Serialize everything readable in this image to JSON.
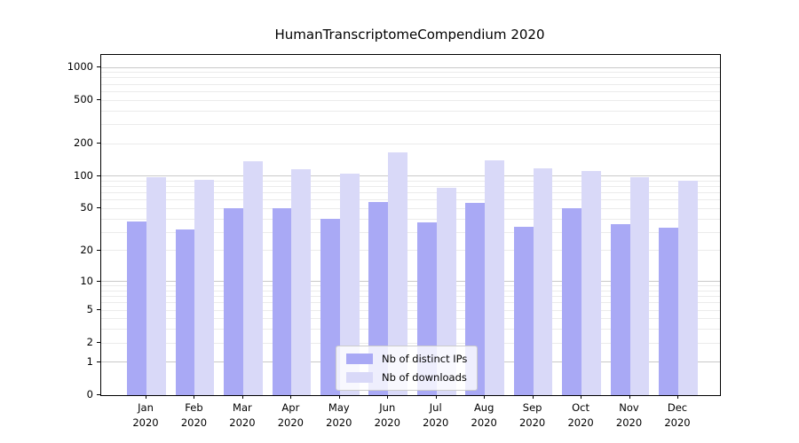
{
  "title": "HumanTranscriptomeCompendium 2020",
  "colors": {
    "ips_bar": "#a9a9f5",
    "downloads_bar": "#d9d9f8",
    "grid_major": "#c9c9c9",
    "grid_minor": "#ebebeb",
    "spine": "#000000",
    "legend_border": "#cccccc"
  },
  "y_axis": {
    "tick_labels": [
      "0",
      "1",
      "2",
      "5",
      "10",
      "20",
      "50",
      "100",
      "200",
      "500",
      "1000"
    ],
    "tick_values": [
      0,
      1,
      2,
      5,
      10,
      20,
      50,
      100,
      200,
      500,
      1000
    ]
  },
  "x_axis": {
    "months": [
      "Jan",
      "Feb",
      "Mar",
      "Apr",
      "May",
      "Jun",
      "Jul",
      "Aug",
      "Sep",
      "Oct",
      "Nov",
      "Dec"
    ],
    "year": "2020"
  },
  "legend": {
    "items": [
      {
        "label": "Nb of distinct IPs"
      },
      {
        "label": "Nb of downloads"
      }
    ]
  },
  "chart_data": {
    "type": "bar",
    "title": "HumanTranscriptomeCompendium 2020",
    "categories": [
      "Jan 2020",
      "Feb 2020",
      "Mar 2020",
      "Apr 2020",
      "May 2020",
      "Jun 2020",
      "Jul 2020",
      "Aug 2020",
      "Sep 2020",
      "Oct 2020",
      "Nov 2020",
      "Dec 2020"
    ],
    "series": [
      {
        "name": "Nb of distinct IPs",
        "color": "#a9a9f5",
        "values": [
          38,
          32,
          50,
          50,
          40,
          58,
          37,
          57,
          34,
          50,
          36,
          33
        ]
      },
      {
        "name": "Nb of downloads",
        "color": "#d9d9f8",
        "values": [
          98,
          93,
          137,
          117,
          105,
          165,
          78,
          139,
          118,
          112,
          98,
          91
        ]
      }
    ],
    "xlabel": "",
    "ylabel": "",
    "y_scale": "log1p",
    "y_ticks": [
      0,
      1,
      2,
      5,
      10,
      20,
      50,
      100,
      200,
      500,
      1000
    ],
    "ylim": [
      0,
      1300
    ],
    "grid": true,
    "legend_position": "lower center"
  }
}
